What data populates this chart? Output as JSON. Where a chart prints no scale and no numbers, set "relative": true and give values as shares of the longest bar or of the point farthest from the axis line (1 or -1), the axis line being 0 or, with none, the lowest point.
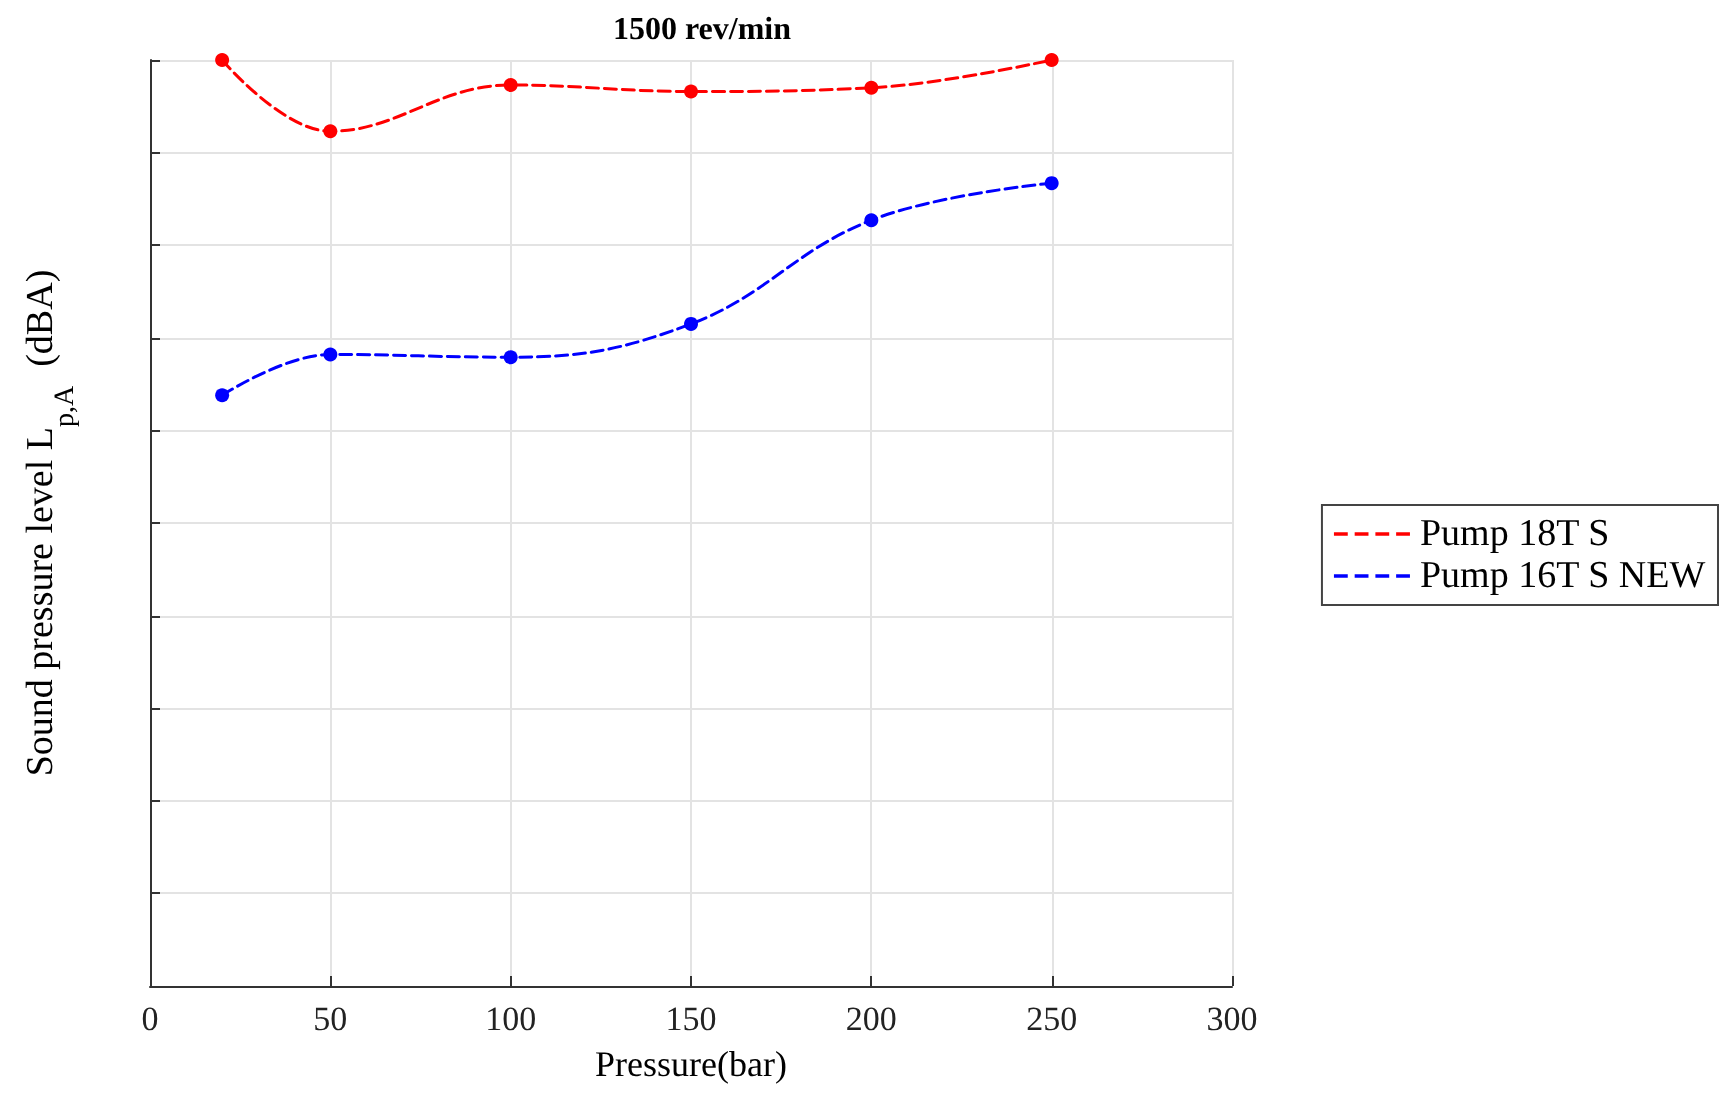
{
  "chart_data": {
    "type": "line",
    "title": "1500 rev/min",
    "xlabel": "Pressure(bar)",
    "ylabel": "Sound pressure level L$_{p,A}$  (dBA)",
    "relative": true,
    "x": [
      20,
      50,
      100,
      150,
      200,
      250
    ],
    "series": [
      {
        "name": "Pump 18T S",
        "color": "#ff0000",
        "values": [
          1,
          0.923,
          0.973,
          0.966,
          0.97,
          1
        ]
      },
      {
        "name": "Pump 16T S NEW",
        "color": "#0000ff",
        "values": [
          0.638,
          0.682,
          0.679,
          0.715,
          0.827,
          0.867
        ]
      }
    ],
    "xlim": [
      0,
      300
    ],
    "xticks": [
      0,
      50,
      100,
      150,
      200,
      250,
      300
    ],
    "grid": true,
    "legend": "right",
    "marker": "circle",
    "line_style": "dashed"
  }
}
